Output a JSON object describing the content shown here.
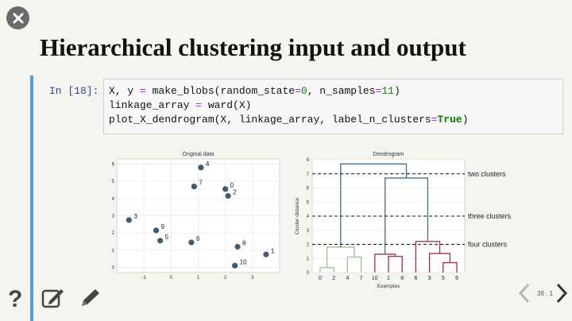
{
  "slide": {
    "title": "Hierarchical clustering input and output",
    "page_number": "39 . 1"
  },
  "cell": {
    "prompt": "In [18]:",
    "code_line1_a": "X, y ",
    "code_line1_op": "=",
    "code_line1_b": " make_blobs(random_state",
    "code_line1_op2": "=",
    "code_line1_n0": "0",
    "code_line1_c": ", n_samples",
    "code_line1_op3": "=",
    "code_line1_n1": "11",
    "code_line1_d": ")",
    "code_line2_a": "linkage_array ",
    "code_line2_op": "=",
    "code_line2_b": " ward(X)",
    "code_line3_a": "plot_X_dendrogram(X, linkage_array, label_n_clusters",
    "code_line3_op": "=",
    "code_line3_kw": "True",
    "code_line3_b": ")"
  },
  "chart_data": [
    {
      "type": "scatter",
      "title": "Original data",
      "xlim": [
        -2,
        4
      ],
      "ylim": [
        -0.3,
        6.3
      ],
      "xticks": [
        -1,
        0,
        1,
        2,
        3
      ],
      "yticks": [
        0,
        1,
        2,
        3,
        4,
        5,
        6
      ],
      "grid": true,
      "color": "#3b5c78",
      "points": [
        {
          "label": "0",
          "x": 2.0,
          "y": 4.55
        },
        {
          "label": "1",
          "x": 3.5,
          "y": 0.75
        },
        {
          "label": "2",
          "x": 2.1,
          "y": 4.15
        },
        {
          "label": "3",
          "x": -1.55,
          "y": 2.75
        },
        {
          "label": "4",
          "x": 1.1,
          "y": 5.8
        },
        {
          "label": "5",
          "x": -0.4,
          "y": 1.55
        },
        {
          "label": "6",
          "x": 0.75,
          "y": 1.45
        },
        {
          "label": "7",
          "x": 0.85,
          "y": 4.7
        },
        {
          "label": "8",
          "x": 2.45,
          "y": 1.2
        },
        {
          "label": "9",
          "x": -0.55,
          "y": 2.15
        },
        {
          "label": "10",
          "x": 2.35,
          "y": 0.1
        }
      ]
    },
    {
      "type": "dendrogram",
      "title": "Dendrogram",
      "xlabel": "Examples",
      "ylabel": "Cluster distance",
      "ylim": [
        0,
        8
      ],
      "yticks": [
        0,
        1,
        2,
        3,
        4,
        5,
        6,
        7,
        8
      ],
      "leaves": [
        "0",
        "2",
        "4",
        "7",
        "10",
        "1",
        "8",
        "6",
        "3",
        "5",
        "9"
      ],
      "colors": {
        "green": "#9ac48f",
        "red": "#a0304a",
        "blue": "#3f7089"
      },
      "links": [
        {
          "a": 0,
          "b": 1,
          "h": 0.35,
          "color": "green"
        },
        {
          "a": 2,
          "b": 3,
          "h": 1.1,
          "color": "green"
        },
        {
          "a": 0.5,
          "b": 2.5,
          "h": 1.8,
          "color": "green"
        },
        {
          "a": 5,
          "b": 6,
          "h": 1.15,
          "color": "red"
        },
        {
          "a": 4,
          "b": 5.5,
          "h": 1.3,
          "color": "red"
        },
        {
          "a": 9,
          "b": 10,
          "h": 0.7,
          "color": "red"
        },
        {
          "a": 8,
          "b": 9.5,
          "h": 1.35,
          "color": "red"
        },
        {
          "a": 7,
          "b": 8.75,
          "h": 2.2,
          "color": "red"
        },
        {
          "a": 4.75,
          "b": 7.875,
          "h": 6.7,
          "color": "blue"
        },
        {
          "a": 1.5,
          "b": 6.3125,
          "h": 7.7,
          "color": "blue"
        }
      ],
      "cutoffs": [
        {
          "y": 7.0,
          "label": "two clusters"
        },
        {
          "y": 4.0,
          "label": "three clusters"
        },
        {
          "y": 2.0,
          "label": "four clusters"
        }
      ]
    }
  ],
  "icons": {
    "close": "close-icon",
    "help": "question-icon",
    "edit": "edit-note-icon",
    "pen": "pen-icon",
    "prev": "chevron-left-icon",
    "next": "chevron-right-icon"
  }
}
